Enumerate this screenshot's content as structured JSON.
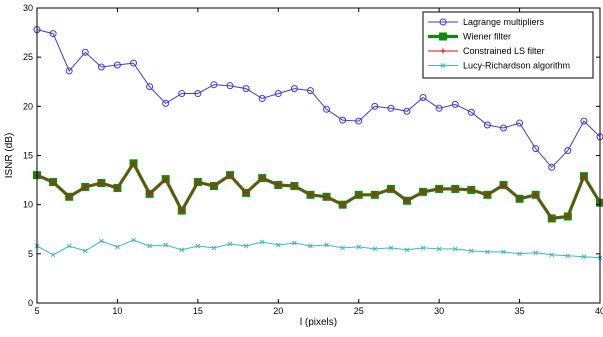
{
  "chart_data": {
    "type": "line",
    "title": "",
    "xlabel": "l (pixels)",
    "ylabel": "ISNR (dB)",
    "xlim": [
      5,
      40
    ],
    "ylim": [
      0,
      30
    ],
    "xticks": [
      5,
      10,
      15,
      20,
      25,
      30,
      35,
      40
    ],
    "yticks": [
      0,
      5,
      10,
      15,
      20,
      25,
      30
    ],
    "grid": false,
    "legend_position": "top-right",
    "x": [
      5,
      6,
      7,
      8,
      9,
      10,
      11,
      12,
      13,
      14,
      15,
      16,
      17,
      18,
      19,
      20,
      21,
      22,
      23,
      24,
      25,
      26,
      27,
      28,
      29,
      30,
      31,
      32,
      33,
      34,
      35,
      36,
      37,
      38,
      39,
      40
    ],
    "series": [
      {
        "name": "Lagrange multipliers",
        "color": "#3b3bd6",
        "marker": "circle",
        "values": [
          27.8,
          27.4,
          23.6,
          25.5,
          24.0,
          24.2,
          24.4,
          22.0,
          20.3,
          21.3,
          21.3,
          22.2,
          22.1,
          21.8,
          20.8,
          21.3,
          21.8,
          21.6,
          19.7,
          18.6,
          18.5,
          20.0,
          19.8,
          19.5,
          20.9,
          19.8,
          20.2,
          19.4,
          18.1,
          17.8,
          18.3,
          15.7,
          13.8,
          15.5,
          18.5,
          16.9
        ]
      },
      {
        "name": "Wiener filter",
        "color": "#118811",
        "marker": "square",
        "values": [
          13.0,
          12.3,
          10.8,
          11.8,
          12.2,
          11.7,
          14.2,
          11.1,
          12.6,
          9.4,
          12.3,
          11.9,
          13.0,
          11.2,
          12.7,
          12.0,
          11.9,
          11.0,
          10.8,
          10.0,
          11.0,
          11.0,
          11.6,
          10.4,
          11.3,
          11.6,
          11.6,
          11.5,
          11.0,
          12.0,
          10.6,
          11.0,
          8.6,
          8.8,
          12.9,
          10.2
        ]
      },
      {
        "name": "Constrained LS filter",
        "color": "#dd1111",
        "marker": "plus",
        "values": [
          13.0,
          12.3,
          10.8,
          11.8,
          12.2,
          11.7,
          14.2,
          11.1,
          12.6,
          9.4,
          12.3,
          11.9,
          13.0,
          11.2,
          12.7,
          12.0,
          11.9,
          11.0,
          10.8,
          10.0,
          11.0,
          11.0,
          11.6,
          10.4,
          11.3,
          11.6,
          11.6,
          11.5,
          11.0,
          12.0,
          10.6,
          11.0,
          8.6,
          8.8,
          12.9,
          10.2
        ]
      },
      {
        "name": "Lucy-Richardson algorithm",
        "color": "#3fb8c0",
        "marker": "x",
        "values": [
          5.8,
          4.9,
          5.8,
          5.3,
          6.3,
          5.7,
          6.4,
          5.8,
          5.9,
          5.4,
          5.8,
          5.6,
          6.0,
          5.8,
          6.2,
          5.9,
          6.1,
          5.8,
          5.9,
          5.6,
          5.7,
          5.5,
          5.6,
          5.4,
          5.6,
          5.5,
          5.5,
          5.3,
          5.2,
          5.2,
          5.0,
          5.1,
          4.9,
          4.8,
          4.7,
          4.6
        ]
      }
    ]
  }
}
